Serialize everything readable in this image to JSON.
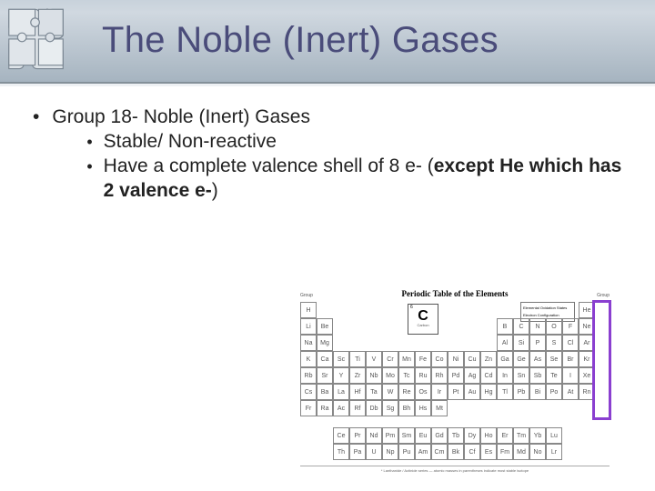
{
  "slide": {
    "title": "The Noble (Inert) Gases",
    "title_color": "#4a4c7a",
    "header_gradient_top": "#c8d2db",
    "header_gradient_bottom": "#a6b4c0",
    "bullet1": "Group 18- Noble (Inert) Gases",
    "sub1": "Stable/ Non-reactive",
    "sub2_a": "Have a complete valence shell of 8 e- (",
    "sub2_b": "except He which has 2 valence e-",
    "sub2_c": ")",
    "text_color": "#222222",
    "font_family": "Verdana"
  },
  "ptable": {
    "title": "Periodic Table of the Elements",
    "highlight_color": "#8a3fd0",
    "sample_symbol": "C",
    "sample_number": "6",
    "sample_name": "Carbon",
    "legend_lines": [
      "Elemental Oxidation States",
      "Electron Configuration"
    ],
    "group_label": "Group",
    "rows": [
      [
        "H",
        "",
        "",
        "",
        "",
        "",
        "",
        "",
        "",
        "",
        "",
        "",
        "",
        "",
        "",
        "",
        "",
        "He"
      ],
      [
        "Li",
        "Be",
        "",
        "",
        "",
        "",
        "",
        "",
        "",
        "",
        "",
        "",
        "B",
        "C",
        "N",
        "O",
        "F",
        "Ne"
      ],
      [
        "Na",
        "Mg",
        "",
        "",
        "",
        "",
        "",
        "",
        "",
        "",
        "",
        "",
        "Al",
        "Si",
        "P",
        "S",
        "Cl",
        "Ar"
      ],
      [
        "K",
        "Ca",
        "Sc",
        "Ti",
        "V",
        "Cr",
        "Mn",
        "Fe",
        "Co",
        "Ni",
        "Cu",
        "Zn",
        "Ga",
        "Ge",
        "As",
        "Se",
        "Br",
        "Kr"
      ],
      [
        "Rb",
        "Sr",
        "Y",
        "Zr",
        "Nb",
        "Mo",
        "Tc",
        "Ru",
        "Rh",
        "Pd",
        "Ag",
        "Cd",
        "In",
        "Sn",
        "Sb",
        "Te",
        "I",
        "Xe"
      ],
      [
        "Cs",
        "Ba",
        "La",
        "Hf",
        "Ta",
        "W",
        "Re",
        "Os",
        "Ir",
        "Pt",
        "Au",
        "Hg",
        "Tl",
        "Pb",
        "Bi",
        "Po",
        "At",
        "Rn"
      ],
      [
        "Fr",
        "Ra",
        "Ac",
        "Rf",
        "Db",
        "Sg",
        "Bh",
        "Hs",
        "Mt",
        "",
        "",
        "",
        "",
        "",
        "",
        "",
        "",
        ""
      ]
    ],
    "fblock": [
      [
        "Ce",
        "Pr",
        "Nd",
        "Pm",
        "Sm",
        "Eu",
        "Gd",
        "Tb",
        "Dy",
        "Ho",
        "Er",
        "Tm",
        "Yb",
        "Lu"
      ],
      [
        "Th",
        "Pa",
        "U",
        "Np",
        "Pu",
        "Am",
        "Cm",
        "Bk",
        "Cf",
        "Es",
        "Fm",
        "Md",
        "No",
        "Lr"
      ]
    ],
    "cell_border": "#888888",
    "cell_text": "#555555"
  }
}
